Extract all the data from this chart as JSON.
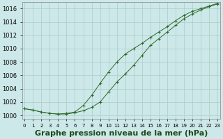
{
  "title": "Graphe pression niveau de la mer (hPa)",
  "x": [
    0,
    1,
    2,
    3,
    4,
    5,
    6,
    7,
    8,
    9,
    10,
    11,
    12,
    13,
    14,
    15,
    16,
    17,
    18,
    19,
    20,
    21,
    22,
    23
  ],
  "line1": [
    1001.0,
    1000.8,
    1000.5,
    1000.3,
    1000.2,
    1000.2,
    1000.4,
    1000.7,
    1001.2,
    1002.0,
    1003.5,
    1005.0,
    1006.2,
    1007.5,
    1009.0,
    1010.5,
    1011.5,
    1012.5,
    1013.5,
    1014.5,
    1015.2,
    1015.8,
    1016.3,
    1016.7
  ],
  "line2": [
    1001.0,
    1000.8,
    1000.5,
    1000.3,
    1000.2,
    1000.3,
    1000.5,
    1001.5,
    1003.0,
    1004.8,
    1006.5,
    1008.0,
    1009.2,
    1010.0,
    1010.8,
    1011.7,
    1012.5,
    1013.3,
    1014.2,
    1015.0,
    1015.6,
    1016.0,
    1016.4,
    1016.8
  ],
  "line_color": "#2d6a2d",
  "marker": "+",
  "marker_size": 3,
  "ylim": [
    999.5,
    1017.0
  ],
  "yticks": [
    1000,
    1002,
    1004,
    1006,
    1008,
    1010,
    1012,
    1014,
    1016
  ],
  "bg_color": "#cde8e8",
  "grid_color": "#aacccc",
  "title_fontsize": 8,
  "tick_fontsize": 6,
  "xlabel_color": "#1a4a1a"
}
